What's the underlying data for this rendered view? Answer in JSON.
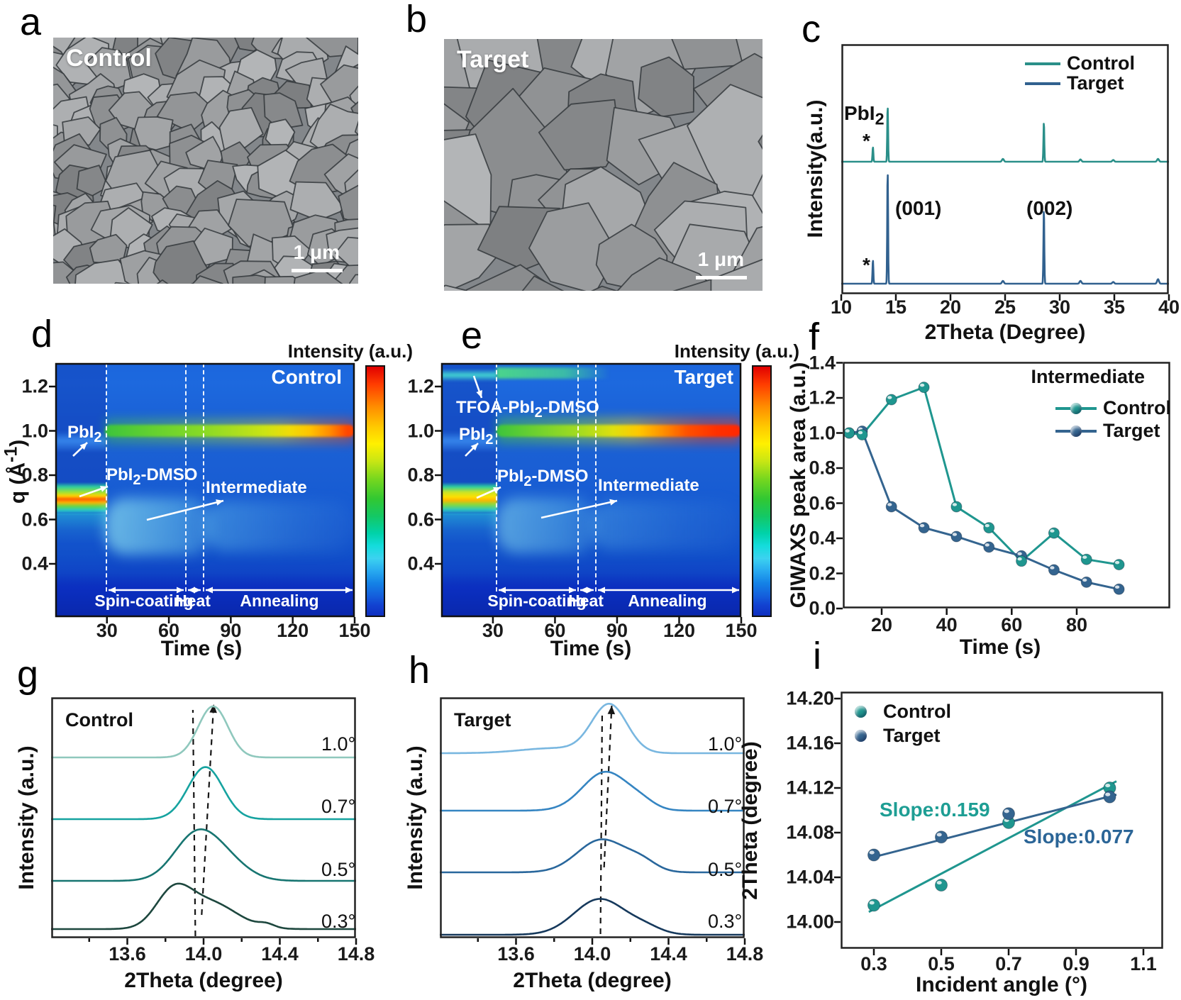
{
  "colors": {
    "control": "#2a8f89",
    "target": "#31618f",
    "control_bright": "#1f968f",
    "target_mid": "#34648f",
    "slope_control": "#1e9e94",
    "slope_target": "#2b6597",
    "heatmap_base_blue": "#1a5fd5",
    "white": "#ffffff"
  },
  "panels": {
    "a": {
      "letter": "a",
      "label": "Control",
      "scale_bar": "1 μm"
    },
    "b": {
      "letter": "b",
      "label": "Target",
      "scale_bar": "1 μm"
    },
    "c": {
      "letter": "c",
      "ylabel": "Intensity(a.u.)",
      "xlabel": "2Theta (Degree)",
      "legend": [
        {
          "label": "Control"
        },
        {
          "label": "Target"
        }
      ],
      "pbi2": {
        "pre": "PbI",
        "sub": "2"
      },
      "star_top": "*",
      "star_bottom": "*",
      "peak001": "(001)",
      "peak002": "(002)"
    },
    "d": {
      "letter": "d",
      "panel_label": "Control",
      "colorbar_title": "Intensity (a.u.)",
      "ylabel": {
        "pre": "q (Å",
        "sup": "-1",
        "post": ")"
      },
      "xlabel": "Time (s)",
      "ann_pbi2": {
        "pre": "PbI",
        "sub": "2"
      },
      "ann_pbi2dmso": {
        "pre": "PbI",
        "sub": "2",
        "post": "-DMSO"
      },
      "ann_intermediate": "Intermediate",
      "regions": [
        "Spin-coating",
        "Heat",
        "Annealing"
      ]
    },
    "e": {
      "letter": "e",
      "panel_label": "Target",
      "colorbar_title": "Intensity (a.u.)",
      "ylabel": {
        "pre": "q (Å",
        "sup": "-1",
        "post": ")"
      },
      "xlabel": "Time (s)",
      "ann_tfoa": {
        "pre": "TFOA-PbI",
        "sub": "2",
        "post": "-DMSO"
      },
      "ann_pbi2": {
        "pre": "PbI",
        "sub": "2"
      },
      "ann_pbi2dmso": {
        "pre": "PbI",
        "sub": "2",
        "post": "-DMSO"
      },
      "ann_intermediate": "Intermediate",
      "regions": [
        "Spin-coating",
        "Heat",
        "Annealing"
      ]
    },
    "f": {
      "letter": "f",
      "ylabel": "GIWAXS peak area (a.u.)",
      "xlabel": "Time (s)",
      "legend_title": "Intermediate",
      "legend": [
        {
          "label": "Control"
        },
        {
          "label": "Target"
        }
      ]
    },
    "g": {
      "letter": "g",
      "panel_label": "Control",
      "ylabel": "Intensity (a.u.)",
      "xlabel": "2Theta (degree)",
      "angle_labels": [
        "1.0°",
        "0.7°",
        "0.5°",
        "0.3°"
      ]
    },
    "h": {
      "letter": "h",
      "panel_label": "Target",
      "ylabel": "Intensity (a.u.)",
      "xlabel": "2Theta (degree)",
      "angle_labels": [
        "1.0°",
        "0.7°",
        "0.5°",
        "0.3°"
      ]
    },
    "i": {
      "letter": "i",
      "ylabel": "2Theta (degree)",
      "xlabel": "Incident angle (°)",
      "legend": [
        {
          "label": "Control"
        },
        {
          "label": "Target"
        }
      ],
      "slope_control": "Slope:0.159",
      "slope_target": "Slope:0.077"
    }
  },
  "chart_data": {
    "c": {
      "type": "line",
      "xlabel": "2Theta (Degree)",
      "ylabel": "Intensity(a.u.)",
      "xlim": [
        10,
        40
      ],
      "xticks": [
        "10",
        "15",
        "20",
        "25",
        "30",
        "35",
        "40"
      ],
      "legend_position": "top-right",
      "series": [
        {
          "name": "Control",
          "color": "#2a8f89",
          "peaks": [
            {
              "x": 12.9,
              "h": 0.13
            },
            {
              "x": 14.25,
              "h": 0.49
            },
            {
              "x": 24.8,
              "h": 0.025
            },
            {
              "x": 28.55,
              "h": 0.35
            },
            {
              "x": 31.9,
              "h": 0.02
            },
            {
              "x": 34.9,
              "h": 0.015
            },
            {
              "x": 39.0,
              "h": 0.025
            }
          ]
        },
        {
          "name": "Target",
          "color": "#31618f",
          "peaks": [
            {
              "x": 12.9,
              "h": 0.21
            },
            {
              "x": 14.25,
              "h": 1.0
            },
            {
              "x": 24.8,
              "h": 0.025
            },
            {
              "x": 28.55,
              "h": 0.66
            },
            {
              "x": 31.9,
              "h": 0.025
            },
            {
              "x": 34.9,
              "h": 0.015
            },
            {
              "x": 39.0,
              "h": 0.04
            }
          ]
        }
      ],
      "annotations": [
        {
          "text": "PbI2",
          "x": 13.0
        },
        {
          "text": "*",
          "x": 12.9
        },
        {
          "text": "(001)",
          "x": 14.25
        },
        {
          "text": "(002)",
          "x": 28.55
        }
      ]
    },
    "d": {
      "type": "heatmap",
      "title": "Control",
      "xlabel": "Time (s)",
      "ylabel": "q (A^-1)",
      "xlim": [
        5,
        150
      ],
      "ylim": [
        0.16,
        1.3
      ],
      "xticks": [
        "30",
        "60",
        "90",
        "120",
        "150"
      ],
      "yticks": [
        "1.2",
        "1.0",
        "0.8",
        "0.6",
        "0.4"
      ],
      "colorbar": "Intensity (a.u.)",
      "events_s": {
        "spin_coating_start": 30,
        "heat_start": 68,
        "annealing_start": 77,
        "end": 150
      },
      "features": [
        "PbI2 band at q=0.9 before spin-coating",
        "PbI2-DMSO hot band at q=0.7 before 30 s",
        "perovskite band at q=1.0 appearing at 30 s, intensifying to red through annealing",
        "diffuse intermediate scattering q=0.45-0.68 after spin-coating"
      ]
    },
    "e": {
      "type": "heatmap",
      "title": "Target",
      "xlabel": "Time (s)",
      "ylabel": "q (A^-1)",
      "xlim": [
        5,
        150
      ],
      "ylim": [
        0.16,
        1.3
      ],
      "xticks": [
        "30",
        "60",
        "90",
        "120",
        "150"
      ],
      "yticks": [
        "1.2",
        "1.0",
        "0.8",
        "0.6",
        "0.4"
      ],
      "colorbar": "Intensity (a.u.)",
      "events_s": {
        "spin_coating_start": 32,
        "heat_start": 72,
        "annealing_start": 80,
        "end": 150
      },
      "features": [
        "TFOA-PbI2-DMSO band at q=1.26 until end of heat step",
        "PbI2 band at q=0.9 before spin-coating",
        "PbI2-DMSO band at q=0.7 before 32 s",
        "perovskite band at q=1.0 appearing at 32 s, strongly red during annealing",
        "weak intermediate scattering q=0.45-0.68 after spin-coating"
      ]
    },
    "f": {
      "type": "scatter-line",
      "xlabel": "Time (s)",
      "ylabel": "GIWAXS peak area (a.u.)",
      "legend_title": "Intermediate",
      "xticks": [
        "20",
        "40",
        "60",
        "80"
      ],
      "yticks": [
        "0.0",
        "0.2",
        "0.4",
        "0.6",
        "0.8",
        "1.0",
        "1.2",
        "1.4"
      ],
      "ylim": [
        0,
        1.4
      ],
      "x": [
        10,
        14,
        23,
        33,
        43,
        53,
        63,
        73,
        83,
        93
      ],
      "series": [
        {
          "name": "Control",
          "color": "#1f968f",
          "values": [
            1.0,
            0.99,
            1.19,
            1.26,
            0.58,
            0.46,
            0.27,
            0.43,
            0.28,
            0.25
          ]
        },
        {
          "name": "Target",
          "color": "#34648f",
          "values": [
            1.0,
            1.01,
            0.58,
            0.46,
            0.41,
            0.35,
            0.3,
            0.22,
            0.15,
            0.11
          ]
        }
      ]
    },
    "g": {
      "type": "line",
      "title": "Control",
      "xlabel": "2Theta (degree)",
      "ylabel": "Intensity (a.u.)",
      "xlim": [
        13.2,
        14.8
      ],
      "xticks": [
        "13.6",
        "14.0",
        "14.4",
        "14.8"
      ],
      "series": [
        {
          "name": "1.0°",
          "color": "#8fc8bd",
          "peaks": [
            {
              "x": 14.05,
              "h": 1.0,
              "w": 0.11
            }
          ]
        },
        {
          "name": "0.7°",
          "color": "#16a3a0",
          "peaks": [
            {
              "x": 14.01,
              "h": 1.02,
              "w": 0.13
            }
          ]
        },
        {
          "name": "0.5°",
          "color": "#177571",
          "peaks": [
            {
              "x": 13.95,
              "h": 0.78,
              "w": 0.16
            },
            {
              "x": 14.1,
              "h": 0.42,
              "w": 0.17
            }
          ]
        },
        {
          "name": "0.3°",
          "color": "#1d473e",
          "peaks": [
            {
              "x": 13.84,
              "h": 0.65,
              "w": 0.13
            },
            {
              "x": 14.03,
              "h": 0.52,
              "w": 0.2
            },
            {
              "x": 14.33,
              "h": 0.07,
              "w": 0.06
            }
          ]
        }
      ],
      "guides": [
        {
          "x1": 13.957,
          "x2": 13.944,
          "arrow": false
        },
        {
          "x1": 13.99,
          "x2": 14.053,
          "arrow": true
        }
      ]
    },
    "h": {
      "type": "line",
      "title": "Target",
      "xlabel": "2Theta (degree)",
      "ylabel": "Intensity (a.u.)",
      "xlim": [
        13.2,
        14.8
      ],
      "xticks": [
        "13.6",
        "14.0",
        "14.4",
        "14.8"
      ],
      "series": [
        {
          "name": "1.0°",
          "color": "#79b7e0",
          "peaks": [
            {
              "x": 14.09,
              "h": 0.97,
              "w": 0.13
            },
            {
              "x": 13.8,
              "h": 0.1,
              "w": 0.25
            }
          ]
        },
        {
          "name": "0.7°",
          "color": "#3585c2",
          "peaks": [
            {
              "x": 14.07,
              "h": 0.78,
              "w": 0.17
            },
            {
              "x": 14.26,
              "h": 0.12,
              "w": 0.1
            }
          ]
        },
        {
          "name": "0.5°",
          "color": "#29679c",
          "peaks": [
            {
              "x": 14.05,
              "h": 0.66,
              "w": 0.18
            },
            {
              "x": 14.26,
              "h": 0.18,
              "w": 0.11
            }
          ]
        },
        {
          "name": "0.3°",
          "color": "#16395c",
          "peaks": [
            {
              "x": 14.04,
              "h": 0.72,
              "w": 0.19
            },
            {
              "x": 14.28,
              "h": 0.12,
              "w": 0.12
            }
          ]
        }
      ],
      "guides": [
        {
          "x1": 14.043,
          "x2": 14.052,
          "arrow": false
        },
        {
          "x1": 14.062,
          "x2": 14.102,
          "arrow": true
        }
      ]
    },
    "i": {
      "type": "scatter",
      "xlabel": "Incident angle (°)",
      "ylabel": "2Theta (degree)",
      "xticks": [
        "0.3",
        "0.5",
        "0.7",
        "0.9",
        "1.1"
      ],
      "yticks": [
        "14.00",
        "14.04",
        "14.08",
        "14.12",
        "14.16",
        "14.20"
      ],
      "series": [
        {
          "name": "Control",
          "color": "#1f968f",
          "slope": 0.159,
          "points": [
            [
              0.3,
              14.015
            ],
            [
              0.5,
              14.033
            ],
            [
              0.7,
              14.089
            ],
            [
              1.0,
              14.12
            ]
          ],
          "fit": [
            [
              0.285,
              14.009
            ],
            [
              1.02,
              14.126
            ]
          ]
        },
        {
          "name": "Target",
          "color": "#34648f",
          "slope": 0.077,
          "points": [
            [
              0.3,
              14.06
            ],
            [
              0.5,
              14.076
            ],
            [
              0.7,
              14.097
            ],
            [
              1.0,
              14.112
            ]
          ],
          "fit": [
            [
              0.285,
              14.057
            ],
            [
              1.02,
              14.114
            ]
          ]
        }
      ]
    }
  }
}
